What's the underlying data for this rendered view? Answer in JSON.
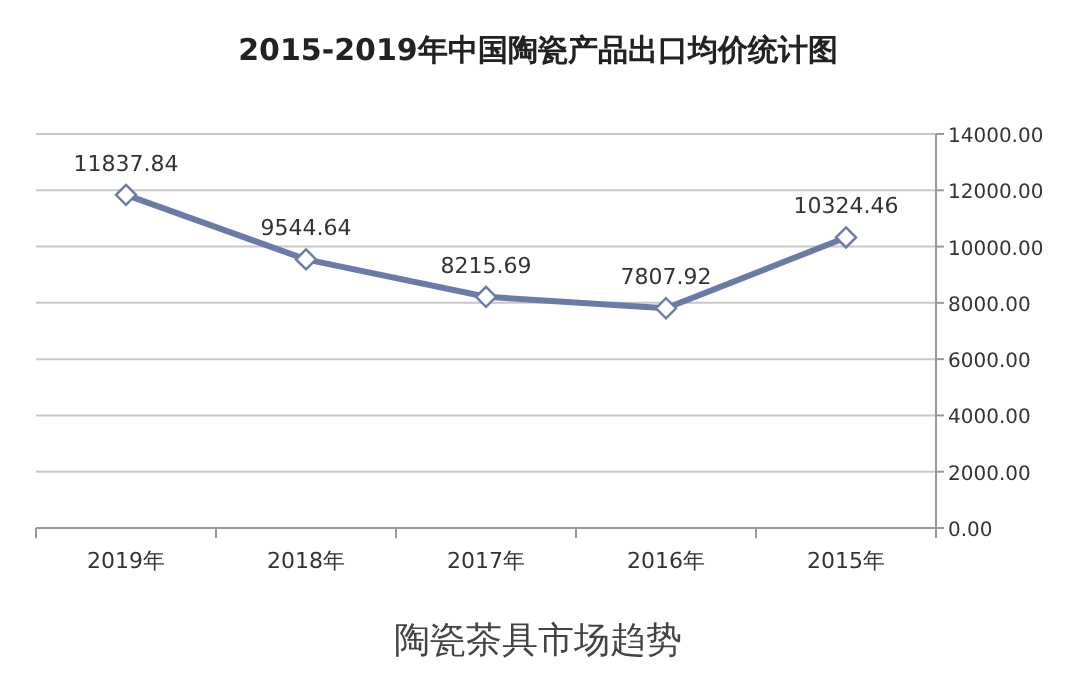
{
  "chart_data": {
    "type": "line",
    "title": "2015-2019年中国陶瓷产品出口均价统计图",
    "categories": [
      "2019年",
      "2018年",
      "2017年",
      "2016年",
      "2015年"
    ],
    "series": [
      {
        "color": "#6b7aa6",
        "values": [
          11837.84,
          9544.64,
          8215.69,
          7807.92,
          10324.46
        ]
      }
    ],
    "ylim": [
      0,
      14000
    ],
    "yticks": [
      {
        "value": 0,
        "label": "0.00"
      },
      {
        "value": 2000,
        "label": "2000.00"
      },
      {
        "value": 4000,
        "label": "4000.00"
      },
      {
        "value": 6000,
        "label": "6000.00"
      },
      {
        "value": 8000,
        "label": "8000.00"
      },
      {
        "value": 10000,
        "label": "10000.00"
      },
      {
        "value": 12000,
        "label": "12000.00"
      },
      {
        "value": 14000,
        "label": "14000.00"
      }
    ],
    "grid": "y",
    "marker": "diamond",
    "data_labels": true,
    "annotations": [
      "陶瓷茶具市场趋势"
    ]
  }
}
